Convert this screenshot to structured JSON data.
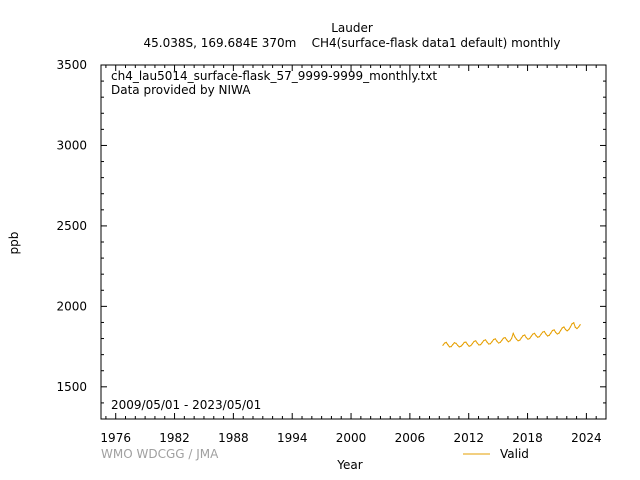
{
  "chart_data": {
    "type": "line",
    "title": "Lauder",
    "subtitle": "45.038S, 169.684E 370m    CH4(surface-flask data1 default) monthly",
    "file_label": "ch4_lau5014_surface-flask_57_9999-9999_monthly.txt",
    "provider": "Data provided by NIWA",
    "date_range": "2009/05/01 - 2023/05/01",
    "credit": "WMO WDCGG / JMA",
    "xlabel": "Year",
    "ylabel": "ppb",
    "xlim": [
      1974.5,
      2026.0
    ],
    "ylim": [
      1300,
      3500
    ],
    "xticks": [
      1976,
      1982,
      1988,
      1994,
      2000,
      2006,
      2012,
      2018,
      2024
    ],
    "yticks": [
      1500,
      2000,
      2500,
      3000,
      3500
    ],
    "grid": false,
    "legend_position": "bottom-right",
    "series": [
      {
        "name": "Valid",
        "color": "#e69f00",
        "x": [
          2009.37,
          2009.54,
          2009.71,
          2009.87,
          2010.04,
          2010.21,
          2010.37,
          2010.54,
          2010.71,
          2010.87,
          2011.04,
          2011.21,
          2011.37,
          2011.54,
          2011.71,
          2011.87,
          2012.04,
          2012.21,
          2012.37,
          2012.54,
          2012.71,
          2012.87,
          2013.04,
          2013.21,
          2013.37,
          2013.54,
          2013.71,
          2013.87,
          2014.04,
          2014.21,
          2014.37,
          2014.54,
          2014.71,
          2014.87,
          2015.04,
          2015.21,
          2015.37,
          2015.54,
          2015.71,
          2015.87,
          2016.04,
          2016.21,
          2016.37,
          2016.54,
          2016.71,
          2016.87,
          2017.04,
          2017.21,
          2017.37,
          2017.54,
          2017.71,
          2017.87,
          2018.04,
          2018.21,
          2018.37,
          2018.54,
          2018.71,
          2018.87,
          2019.04,
          2019.21,
          2019.37,
          2019.54,
          2019.71,
          2019.87,
          2020.04,
          2020.21,
          2020.37,
          2020.54,
          2020.71,
          2020.87,
          2021.04,
          2021.21,
          2021.37,
          2021.54,
          2021.71,
          2021.87,
          2022.04,
          2022.21,
          2022.37,
          2022.54,
          2022.71,
          2022.87,
          2023.04,
          2023.21,
          2023.37
        ],
        "values": [
          1758,
          1772,
          1776,
          1762,
          1748,
          1750,
          1762,
          1774,
          1770,
          1758,
          1748,
          1752,
          1762,
          1776,
          1778,
          1764,
          1752,
          1756,
          1768,
          1782,
          1786,
          1772,
          1760,
          1762,
          1774,
          1788,
          1792,
          1778,
          1766,
          1768,
          1780,
          1794,
          1798,
          1784,
          1772,
          1776,
          1788,
          1802,
          1806,
          1792,
          1780,
          1786,
          1800,
          1832,
          1810,
          1796,
          1786,
          1790,
          1804,
          1818,
          1822,
          1806,
          1796,
          1800,
          1814,
          1828,
          1832,
          1818,
          1808,
          1812,
          1826,
          1840,
          1844,
          1828,
          1816,
          1820,
          1834,
          1850,
          1854,
          1838,
          1828,
          1834,
          1850,
          1866,
          1872,
          1856,
          1848,
          1856,
          1872,
          1892,
          1898,
          1870,
          1862,
          1872,
          1886
        ]
      }
    ]
  }
}
